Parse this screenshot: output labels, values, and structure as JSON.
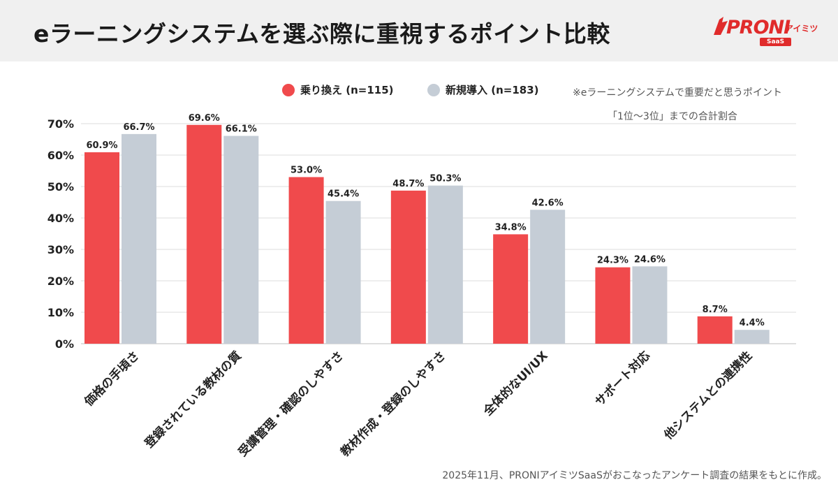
{
  "header": {
    "title": "eラーニングシステムを選ぶ際に重視するポイント比較",
    "logo": {
      "word": "PRONI",
      "sub": "アイミツ",
      "badge": "SaaS"
    }
  },
  "legend": [
    {
      "label": "乗り換え (n=115)",
      "color": "#f04a4c"
    },
    {
      "label": "新規導入 (n=183)",
      "color": "#c5cdd6"
    }
  ],
  "note": {
    "line1": "※eラーニングシステムで重要だと思うポイント",
    "line2": "「1位〜3位」までの合計割合"
  },
  "footer": "2025年11月、PRONIアイミツSaaSがおこなったアンケート調査の結果をもとに作成。",
  "chart_data": {
    "type": "bar",
    "title": "eラーニングシステムを選ぶ際に重視するポイント比較",
    "categories": [
      "価格の手頃さ",
      "登録されている教材の質",
      "受講管理・確認のしやすさ",
      "教材作成・登録のしやすさ",
      "全体的なUI/UX",
      "サポート対応",
      "他システムとの連携性"
    ],
    "series": [
      {
        "name": "乗り換え (n=115)",
        "color": "#f04a4c",
        "values": [
          60.9,
          69.6,
          53.0,
          48.7,
          34.8,
          24.3,
          8.7
        ]
      },
      {
        "name": "新規導入 (n=183)",
        "color": "#c5cdd6",
        "values": [
          66.7,
          66.1,
          45.4,
          50.3,
          42.6,
          24.6,
          4.4
        ]
      }
    ],
    "ylim": [
      0,
      70
    ],
    "yticks": [
      "0%",
      "10%",
      "20%",
      "30%",
      "40%",
      "50%",
      "60%",
      "70%"
    ],
    "value_labels": [
      [
        "60.9%",
        "69.6%",
        "53.0%",
        "48.7%",
        "34.8%",
        "24.3%",
        "8.7%"
      ],
      [
        "66.7%",
        "66.1%",
        "45.4%",
        "50.3%",
        "42.6%",
        "24.6%",
        "4.4%"
      ]
    ],
    "grid": true,
    "legend_position": "top"
  }
}
